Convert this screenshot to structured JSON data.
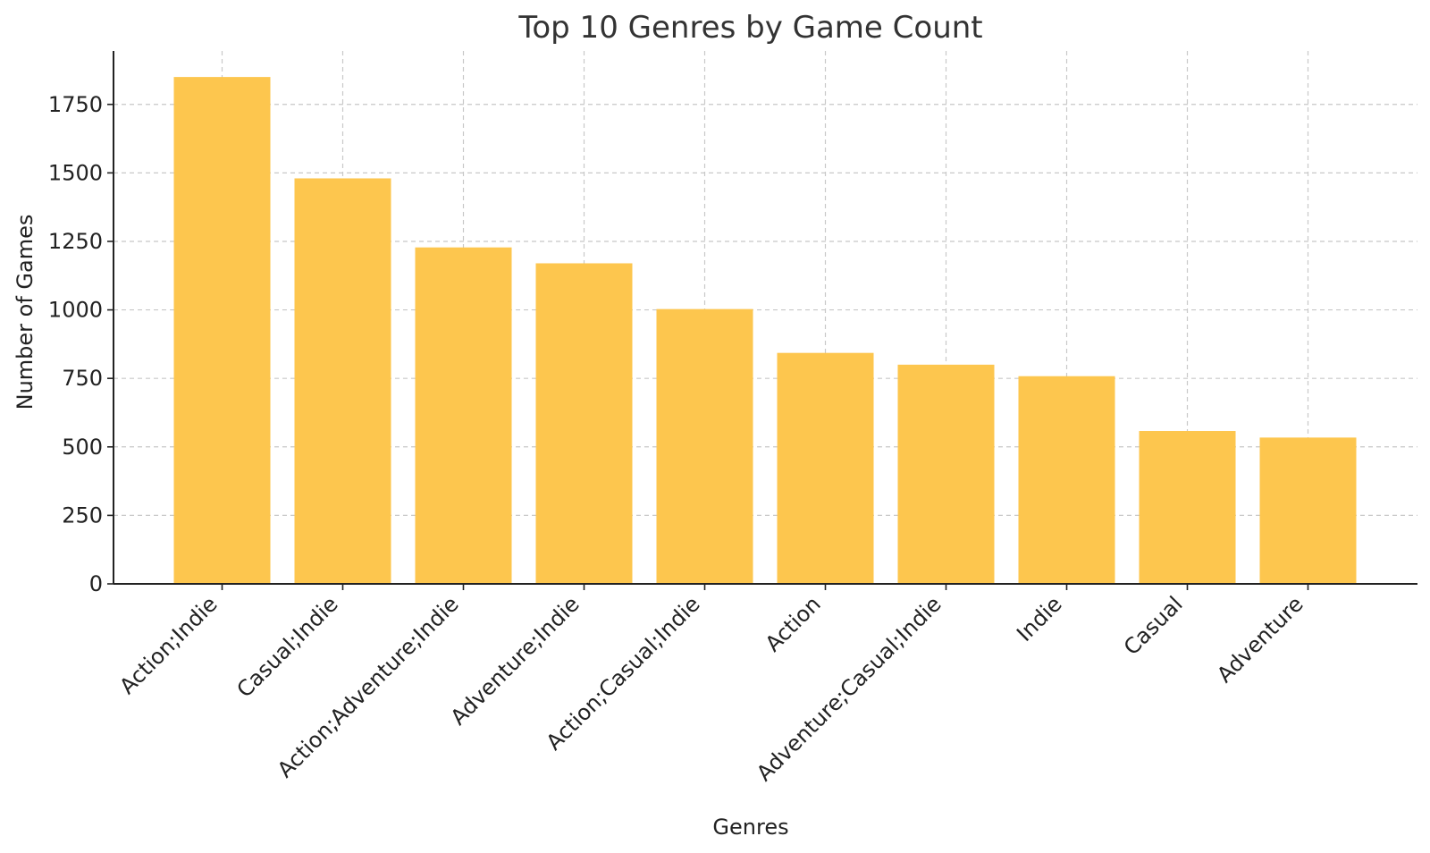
{
  "chart_data": {
    "type": "bar",
    "title": "Top 10 Genres by Game Count",
    "xlabel": "Genres",
    "ylabel": "Number of Games",
    "categories": [
      "Action;Indie",
      "Casual;Indie",
      "Action;Adventure;Indie",
      "Adventure;Indie",
      "Action;Casual;Indie",
      "Action",
      "Adventure;Casual;Indie",
      "Indie",
      "Casual",
      "Adventure"
    ],
    "values": [
      1850,
      1480,
      1228,
      1170,
      1003,
      843,
      800,
      758,
      558,
      534
    ],
    "ylim": [
      0,
      1945
    ],
    "yticks": [
      0,
      250,
      500,
      750,
      1000,
      1250,
      1500,
      1750
    ],
    "grid": true,
    "bar_color": "#fdc64e"
  }
}
